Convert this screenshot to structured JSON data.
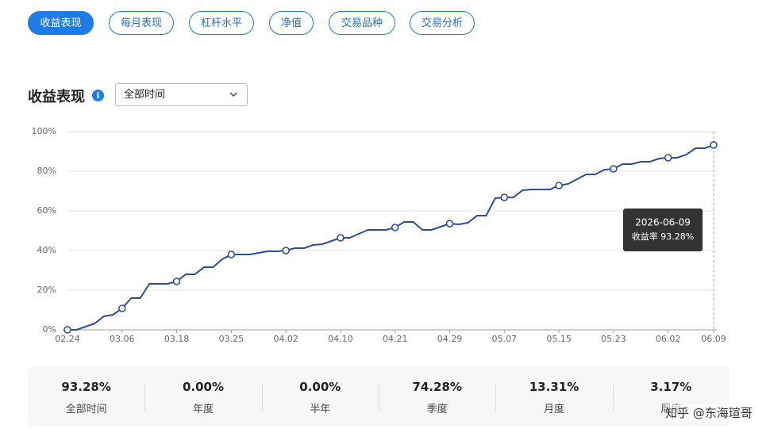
{
  "tabs": {
    "items": [
      "收益表现",
      "每月表现",
      "杠杆水平",
      "净值",
      "交易品种",
      "交易分析"
    ],
    "active": 0
  },
  "section": {
    "title": "收益表现",
    "dropdown": "全部时间"
  },
  "chart_data": {
    "type": "line",
    "color": "#2b4d9f",
    "grid": true,
    "categories": [
      "02.24",
      null,
      null,
      null,
      null,
      null,
      "03.06",
      null,
      null,
      null,
      null,
      null,
      "03.18",
      null,
      null,
      null,
      null,
      null,
      "03.25",
      null,
      null,
      null,
      null,
      null,
      "04.02",
      null,
      null,
      null,
      null,
      null,
      "04.10",
      null,
      null,
      null,
      null,
      null,
      "04.21",
      null,
      null,
      null,
      null,
      null,
      "04.29",
      null,
      null,
      null,
      null,
      null,
      "05.07",
      null,
      null,
      null,
      null,
      null,
      "05.15",
      null,
      null,
      null,
      null,
      null,
      "05.23",
      null,
      null,
      null,
      null,
      null,
      "06.02",
      null,
      null,
      null,
      null,
      "06.09"
    ],
    "series": [
      {
        "name": "收益率",
        "values": [
          0,
          0,
          1.6,
          3.2,
          6.8,
          7.6,
          10.8,
          16,
          16,
          23.2,
          23.2,
          23.2,
          24.4,
          28,
          28,
          31.6,
          31.6,
          35.6,
          38,
          38,
          38,
          38.8,
          39.6,
          39.6,
          40,
          41.2,
          41.2,
          42.8,
          43.2,
          44.8,
          46.4,
          46.4,
          48.4,
          50.4,
          50.4,
          50.4,
          51.6,
          54.4,
          54.4,
          50.4,
          50.4,
          52,
          53.6,
          53.2,
          54,
          57.6,
          57.6,
          66.4,
          66.8,
          66.8,
          70.4,
          70.8,
          70.8,
          70.8,
          72.8,
          73.6,
          76,
          78.4,
          78.4,
          80.8,
          81.2,
          83.6,
          83.6,
          84.8,
          84.8,
          86.4,
          86.8,
          86.8,
          88.4,
          91.6,
          91.6,
          93.28
        ]
      }
    ],
    "ylim": [
      0,
      100
    ],
    "yticks": [
      {
        "value": 0,
        "label": "0%"
      },
      {
        "value": 20,
        "label": "20%"
      },
      {
        "value": 40,
        "label": "40%"
      },
      {
        "value": 60,
        "label": "60%"
      },
      {
        "value": 80,
        "label": "80%"
      },
      {
        "value": 100,
        "label": "100%"
      }
    ],
    "tooltip": {
      "date": "2026-06-09",
      "text": "收益率 93.28%"
    }
  },
  "stats": [
    {
      "value": "93.28%",
      "label": "全部时间"
    },
    {
      "value": "0.00%",
      "label": "年度"
    },
    {
      "value": "0.00%",
      "label": "半年"
    },
    {
      "value": "74.28%",
      "label": "季度"
    },
    {
      "value": "13.31%",
      "label": "月度"
    },
    {
      "value": "3.17%",
      "label": "周度"
    }
  ],
  "watermark": "知乎 @东海瑄哥"
}
